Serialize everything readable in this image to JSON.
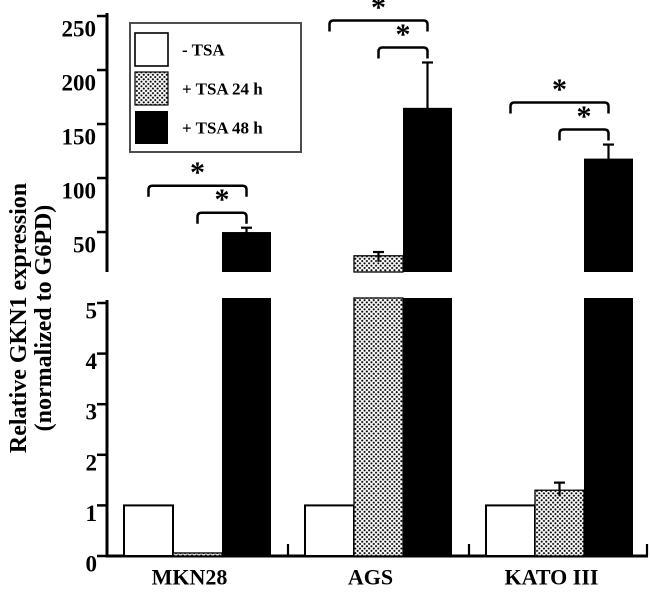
{
  "figure": {
    "y_axis_title_line1": "Relative GKN1 expression",
    "y_axis_title_line2": "(normalized to G6PD)",
    "colors": {
      "ink": "#000000",
      "bar_white_fill": "#ffffff",
      "bar_black_fill": "#000000",
      "legend_border": "#4d4d4d",
      "background": "#ffffff"
    }
  },
  "chart_data": {
    "type": "bar",
    "title": "",
    "ylabel": "Relative GKN1 expression (normalized to G6PD)",
    "xlabel": "",
    "grid": false,
    "legend_position": "upper-left",
    "categories": [
      "MKN28",
      "AGS",
      "KATO III"
    ],
    "series": [
      {
        "name": "- TSA",
        "fill": "white",
        "values": [
          1.0,
          1.0,
          1.0
        ],
        "errors": [
          0,
          0,
          0
        ]
      },
      {
        "name": "+ TSA 24 h",
        "fill": "dots",
        "values": [
          0.06,
          28,
          1.3
        ],
        "errors": [
          0,
          3.5,
          0.15
        ]
      },
      {
        "name": "+ TSA 48 h",
        "fill": "black",
        "values": [
          50,
          165,
          118
        ],
        "errors": [
          4,
          42,
          13
        ]
      }
    ],
    "axis_break": {
      "lower_panel_range": [
        0,
        5
      ],
      "upper_panel_range": [
        13,
        253
      ],
      "note": "bars exceeding 5 are clipped in the lower panel and continue in the upper panel"
    },
    "upper_ticks": [
      50,
      100,
      150,
      200,
      250
    ],
    "lower_ticks": [
      0,
      1,
      2,
      3,
      4,
      5
    ],
    "significance": [
      {
        "category": "MKN28",
        "pairs": [
          {
            "from": "- TSA",
            "to": "+ TSA 48 h",
            "label": "*"
          },
          {
            "from": "+ TSA 24 h",
            "to": "+ TSA 48 h",
            "label": "*"
          }
        ]
      },
      {
        "category": "AGS",
        "pairs": [
          {
            "from": "- TSA",
            "to": "+ TSA 48 h",
            "label": "*"
          },
          {
            "from": "+ TSA 24 h",
            "to": "+ TSA 48 h",
            "label": "*"
          }
        ]
      },
      {
        "category": "KATO III",
        "pairs": [
          {
            "from": "- TSA",
            "to": "+ TSA 48 h",
            "label": "*"
          },
          {
            "from": "+ TSA 24 h",
            "to": "+ TSA 48 h",
            "label": "*"
          }
        ]
      }
    ]
  }
}
